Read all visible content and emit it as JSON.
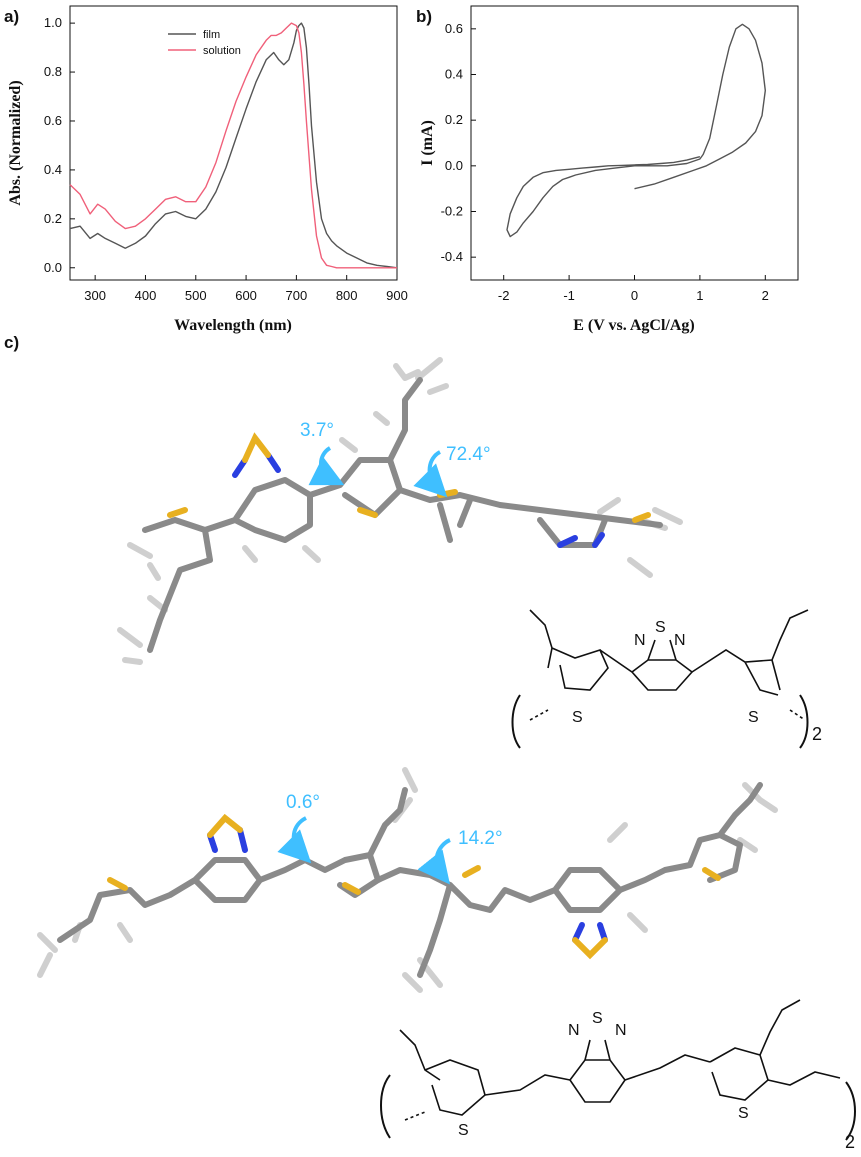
{
  "panels": {
    "a": "a)",
    "b": "b)",
    "c": "c)"
  },
  "chart_data": [
    {
      "type": "line",
      "panel": "a)",
      "xlabel": "Wavelength (nm)",
      "ylabel": "Abs. (Normalized)",
      "xlim": [
        250,
        900
      ],
      "ylim": [
        -0.05,
        1.07
      ],
      "xticks": [
        300,
        400,
        500,
        600,
        700,
        800,
        900
      ],
      "yticks": [
        0.0,
        0.2,
        0.4,
        0.6,
        0.8,
        1.0
      ],
      "xtick_labels": [
        "300",
        "400",
        "500",
        "600",
        "700",
        "800",
        "900"
      ],
      "ytick_labels": [
        "0.0",
        "0.2",
        "0.4",
        "0.6",
        "0.8",
        "1.0"
      ],
      "legend_position": "top-left",
      "series": [
        {
          "name": "film",
          "color": "#555555",
          "x": [
            250,
            270,
            290,
            305,
            320,
            340,
            360,
            380,
            400,
            420,
            440,
            460,
            480,
            500,
            520,
            540,
            560,
            580,
            600,
            620,
            640,
            655,
            665,
            675,
            685,
            695,
            700,
            705,
            710,
            715,
            720,
            725,
            730,
            740,
            750,
            760,
            770,
            780,
            800,
            820,
            840,
            860,
            880,
            900
          ],
          "y": [
            0.16,
            0.17,
            0.12,
            0.14,
            0.12,
            0.1,
            0.08,
            0.1,
            0.13,
            0.18,
            0.22,
            0.23,
            0.21,
            0.2,
            0.24,
            0.31,
            0.41,
            0.53,
            0.65,
            0.76,
            0.85,
            0.88,
            0.85,
            0.83,
            0.85,
            0.92,
            0.97,
            0.99,
            1.0,
            0.98,
            0.9,
            0.75,
            0.58,
            0.35,
            0.2,
            0.14,
            0.11,
            0.09,
            0.06,
            0.04,
            0.02,
            0.01,
            0.005,
            0.0
          ]
        },
        {
          "name": "solution",
          "color": "#f0607a",
          "x": [
            250,
            270,
            290,
            305,
            320,
            340,
            360,
            380,
            400,
            420,
            440,
            460,
            480,
            500,
            520,
            540,
            560,
            580,
            600,
            620,
            640,
            650,
            660,
            670,
            680,
            690,
            700,
            705,
            710,
            715,
            720,
            730,
            740,
            750,
            760,
            770,
            780,
            800,
            850,
            900
          ],
          "y": [
            0.34,
            0.3,
            0.22,
            0.26,
            0.24,
            0.19,
            0.16,
            0.17,
            0.2,
            0.24,
            0.28,
            0.29,
            0.27,
            0.27,
            0.33,
            0.43,
            0.56,
            0.68,
            0.78,
            0.87,
            0.93,
            0.95,
            0.95,
            0.96,
            0.98,
            1.0,
            0.99,
            0.96,
            0.88,
            0.75,
            0.6,
            0.32,
            0.13,
            0.04,
            0.01,
            0.005,
            0.0,
            0.0,
            0.0,
            0.0
          ]
        }
      ]
    },
    {
      "type": "line",
      "panel": "b)",
      "xlabel": "E (V vs. AgCl/Ag)",
      "ylabel": "I (mA)",
      "xlim": [
        -2.5,
        2.5
      ],
      "ylim": [
        -0.5,
        0.7
      ],
      "xticks": [
        -2,
        -1,
        0,
        1,
        2
      ],
      "yticks": [
        -0.4,
        -0.2,
        0.0,
        0.2,
        0.4,
        0.6
      ],
      "xtick_labels": [
        "-2",
        "-1",
        "0",
        "1",
        "2"
      ],
      "ytick_labels": [
        "-0.4",
        "-0.2",
        "0.0",
        "0.2",
        "0.4",
        "0.6"
      ],
      "series": [
        {
          "color": "#555555",
          "x": [
            0.0,
            0.3,
            0.6,
            0.9,
            1.1,
            1.3,
            1.5,
            1.7,
            1.85,
            1.95,
            2.0,
            1.95,
            1.85,
            1.75,
            1.65,
            1.55,
            1.45,
            1.35,
            1.25,
            1.15,
            1.05,
            1.0,
            0.8,
            0.5,
            0.2,
            0.0,
            -0.3,
            -0.6,
            -0.9,
            -1.0,
            -1.1,
            -1.25,
            -1.4,
            -1.55,
            -1.7,
            -1.8,
            -1.9,
            -1.95,
            -1.9,
            -1.8,
            -1.7,
            -1.55,
            -1.4,
            -1.2,
            -1.0,
            -0.8,
            -0.6,
            -0.4,
            -0.2,
            0.0,
            0.2,
            0.4,
            0.6,
            0.8,
            1.0
          ],
          "y": [
            -0.1,
            -0.08,
            -0.05,
            -0.02,
            0.0,
            0.03,
            0.06,
            0.1,
            0.15,
            0.22,
            0.33,
            0.45,
            0.55,
            0.6,
            0.62,
            0.6,
            0.52,
            0.4,
            0.26,
            0.12,
            0.05,
            0.03,
            0.01,
            0.0,
            0.0,
            0.0,
            -0.01,
            -0.02,
            -0.04,
            -0.05,
            -0.06,
            -0.09,
            -0.14,
            -0.2,
            -0.25,
            -0.29,
            -0.31,
            -0.28,
            -0.21,
            -0.14,
            -0.09,
            -0.05,
            -0.03,
            -0.02,
            -0.015,
            -0.01,
            -0.005,
            0.0,
            0.002,
            0.004,
            0.006,
            0.01,
            0.015,
            0.025,
            0.04
          ]
        }
      ]
    }
  ],
  "structure_top": {
    "angle_1": "3.7°",
    "angle_2": "72.4°",
    "atom_n1": "N",
    "atom_s": "S",
    "atom_n2": "N",
    "atom_s_left": "S",
    "atom_s_right": "S",
    "repeat": "2"
  },
  "structure_bottom": {
    "angle_1": "0.6°",
    "angle_2": "14.2°",
    "atom_n1": "N",
    "atom_s": "S",
    "atom_n2": "N",
    "atom_s_left": "S",
    "atom_s_right": "S",
    "repeat": "2"
  },
  "colors": {
    "carbon": "#8a8a8a",
    "hydrogen": "#d8d8d8",
    "nitrogen": "#2a3fe0",
    "sulfur": "#e8b020",
    "arrow": "#3fbfff"
  }
}
